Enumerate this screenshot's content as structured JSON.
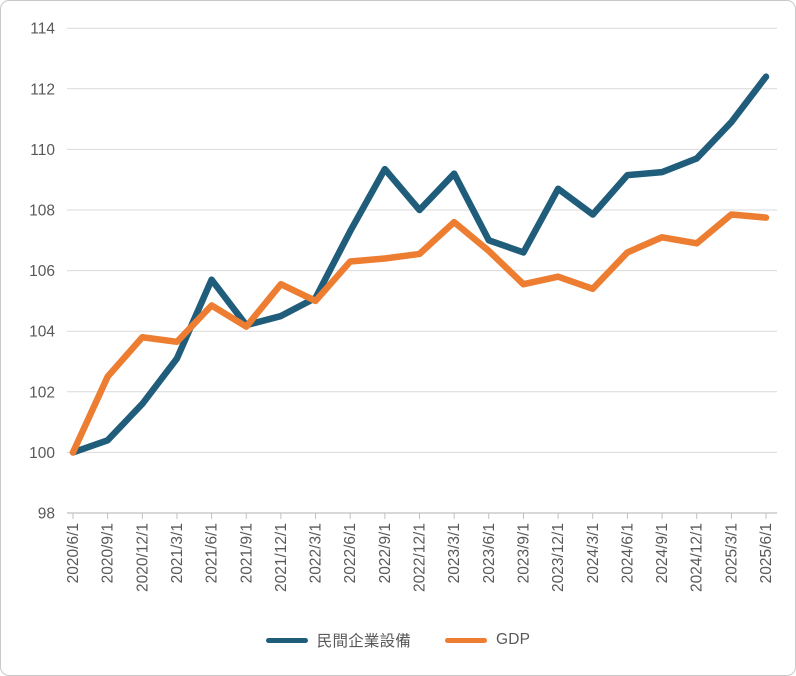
{
  "chart_data": {
    "type": "line",
    "title": "",
    "xlabel": "",
    "ylabel": "",
    "categories": [
      "2020/6/1",
      "2020/9/1",
      "2020/12/1",
      "2021/3/1",
      "2021/6/1",
      "2021/9/1",
      "2021/12/1",
      "2022/3/1",
      "2022/6/1",
      "2022/9/1",
      "2022/12/1",
      "2023/3/1",
      "2023/6/1",
      "2023/9/1",
      "2023/12/1",
      "2024/3/1",
      "2024/6/1",
      "2024/9/1",
      "2024/12/1",
      "2025/3/1",
      "2025/6/1"
    ],
    "series": [
      {
        "name": "民間企業設備",
        "color": "#1F5D7B",
        "values": [
          100,
          100.4,
          101.6,
          103.1,
          105.7,
          104.2,
          104.5,
          105.1,
          107.3,
          109.35,
          108.0,
          109.2,
          107.0,
          106.6,
          108.7,
          107.85,
          109.15,
          109.25,
          109.7,
          110.9,
          112.4
        ]
      },
      {
        "name": "GDP",
        "color": "#ED7D31",
        "values": [
          100,
          102.5,
          103.8,
          103.65,
          104.85,
          104.15,
          105.55,
          105.0,
          106.3,
          106.4,
          106.55,
          107.6,
          106.65,
          105.55,
          105.8,
          105.4,
          106.6,
          107.1,
          106.9,
          107.85,
          107.75
        ]
      }
    ],
    "ylim": [
      98,
      114
    ],
    "yticks": [
      98,
      100,
      102,
      104,
      106,
      108,
      110,
      112,
      114
    ],
    "grid": true,
    "legend_position": "bottom",
    "x_label_rotation_deg": 90
  },
  "colors": {
    "gridline": "#D9D9D9",
    "axis_line": "#BFBFBF",
    "tick_mark": "#BFBFBF",
    "axis_label_text": "#595959",
    "legend_text": "#595959",
    "frame_border": "#C9C9C9",
    "background": "#FFFFFF"
  }
}
